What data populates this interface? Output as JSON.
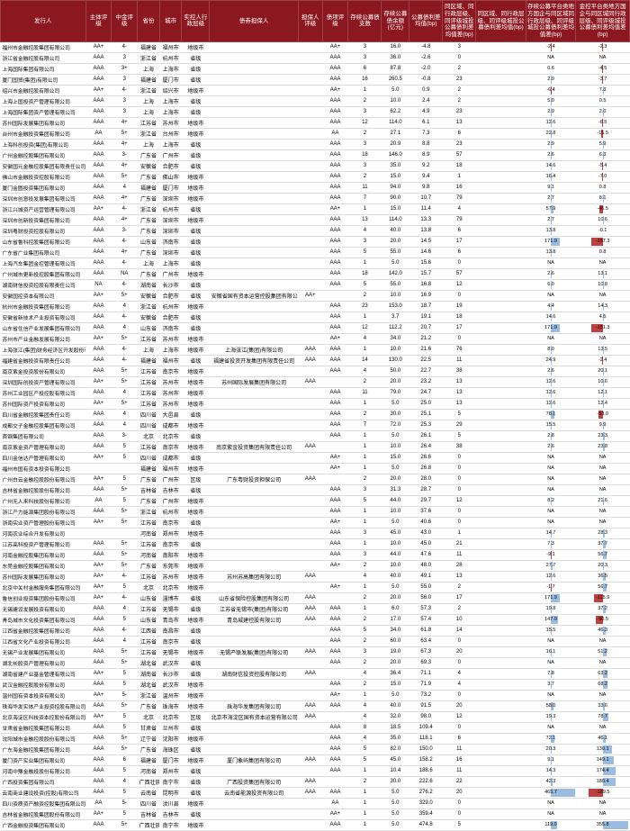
{
  "colors": {
    "header_bg": "#8b1820",
    "bar_pos": "#9bbce0",
    "bar_neg": "#c04040"
  },
  "widths": [
    92,
    28,
    28,
    24,
    24,
    30,
    96,
    26,
    28,
    36,
    30,
    36,
    36,
    54,
    54,
    58
  ],
  "headers": [
    "发行人",
    "主体评级",
    "中金评级",
    "省份",
    "城市",
    "实控人行政层级",
    "债券担保人",
    "担保人评级",
    "债项评级",
    "存续公募债支数",
    "存续公募债余额(亿元)",
    "公募债利差均值(bp)",
    "同区域、同行政层级、同评级城投公募债利差均值差(bp)",
    "同区域、同行政层级、同评级城投公募债利差均值(bp)",
    "存续公募平台类地方国企与同区域同行政层级、同评级城投公募债利差均值差(bp)",
    "金控平台类地方国企与同区城同行政层级、同评级城投公募债利差均值差(bp)"
  ],
  "bar_cols": [
    14,
    15
  ],
  "rows": [
    [
      "福州市金融控股集团有限公司",
      "AA+",
      "4-",
      "福建省",
      "福州市",
      "地级市",
      "",
      "",
      "AA+",
      "3",
      "16.0",
      "-4.8",
      "3",
      "",
      "-2.4",
      "-2.3"
    ],
    [
      "浙江省金融控股有限公司",
      "AAA",
      "3",
      "浙江省",
      "杭州市",
      "省级",
      "",
      "",
      "AAA",
      "3",
      "36.0",
      "-2.6",
      "0",
      "",
      "NA",
      "NA"
    ],
    [
      "上海国际集团有限公司",
      "AAA",
      "3+",
      "上海",
      "上海市",
      "省级",
      "",
      "",
      "AAA",
      "6",
      "87.8",
      "-2.0",
      "2",
      "",
      "0.6",
      "-4.5"
    ],
    [
      "厦门国贸(集团)有限公司",
      "AAA",
      "3",
      "福建省",
      "厦门市",
      "省级",
      "",
      "",
      "AAA",
      "16",
      "260.5",
      "-0.8",
      "23",
      "",
      "2.9",
      "-3.7"
    ],
    [
      "绍兴市金融控股有限公司",
      "AA+",
      "4-",
      "浙江省",
      "绍兴市",
      "地级市",
      "",
      "",
      "AA+",
      "1",
      "5.0",
      "0.9",
      "2",
      "",
      "-6.4",
      "7.3"
    ],
    [
      "上海上国投资产管理有限公司",
      "AAA",
      "3",
      "上海",
      "上海市",
      "省级",
      "",
      "",
      "AAA",
      "2",
      "10.0",
      "2.4",
      "2",
      "",
      "5.0",
      "0.5"
    ],
    [
      "上海国际集团资产管理有限公司",
      "AAA",
      "3",
      "上海",
      "上海市",
      "省级",
      "",
      "",
      "AAA",
      "3",
      "62.2",
      "4.9",
      "23",
      "",
      "2.9",
      "2.0"
    ],
    [
      "苏州国际发展集团有限公司",
      "AAA",
      "4+",
      "江苏省",
      "苏州市",
      "地级市",
      "",
      "",
      "AAA",
      "12",
      "114.0",
      "6.1",
      "13",
      "",
      "12.6",
      "-6.5"
    ],
    [
      "台州市金融投资集团有限公司",
      "AA",
      "5+",
      "浙江省",
      "台州市",
      "地级市",
      "",
      "",
      "AA",
      "2",
      "27.1",
      "7.3",
      "6",
      "",
      "22.8",
      "-15.5"
    ],
    [
      "上海科创投资(集团)有限公司",
      "AAA",
      "4+",
      "上海",
      "上海市",
      "省级",
      "",
      "",
      "AAA",
      "3",
      "20.9",
      "8.8",
      "23",
      "",
      "2.9",
      "5.9"
    ],
    [
      "广州金融控股集团有限公司",
      "AAA",
      "3-",
      "广东省",
      "广州市",
      "省级",
      "",
      "",
      "AAA",
      "18",
      "146.0",
      "8.9",
      "57",
      "",
      "2.6",
      "6.3"
    ],
    [
      "安徽国元金融控股集团有限责任公司",
      "AAA",
      "4+",
      "安徽省",
      "合肥市",
      "省级",
      "",
      "",
      "AAA",
      "3",
      "35.0",
      "9.2",
      "18",
      "",
      "14.6",
      "-5.4"
    ],
    [
      "佛山市金融投资控股有限公司",
      "AAA",
      "5+",
      "广东省",
      "佛山市",
      "地级市",
      "",
      "",
      "AAA",
      "2",
      "15.0",
      "9.4",
      "1",
      "",
      "16.4",
      "-7.0"
    ],
    [
      "厦门金圆投资集团有限公司",
      "AAA",
      "4",
      "福建省",
      "厦门市",
      "地级市",
      "",
      "",
      "AAA",
      "11",
      "94.0",
      "9.8",
      "16",
      "",
      "9.1",
      "0.8"
    ],
    [
      "深圳市创意投发展集团有限公司",
      "AAA",
      "4+",
      "广东省",
      "深圳市",
      "地级市",
      "",
      "",
      "AAA",
      "7",
      "90.0",
      "10.7",
      "79",
      "",
      "2.7",
      "8.1"
    ],
    [
      "浙江兴城资产运营管理有限公司",
      "AA+",
      "4-",
      "浙江省",
      "杭州市",
      "省级",
      "",
      "",
      "AA+",
      "1",
      "15.0",
      "11.4",
      "4",
      "",
      "57.9",
      "-46.5"
    ],
    [
      "深圳市创新投资集团有限公司",
      "AAA",
      "4+",
      "广东省",
      "深圳市",
      "地级市",
      "",
      "",
      "AAA",
      "13",
      "114.0",
      "13.3",
      "79",
      "",
      "2.7",
      "10.6"
    ],
    [
      "深圳粤财投资控股有限公司",
      "AAA",
      "3-",
      "广东省",
      "深圳市",
      "省级",
      "",
      "",
      "AAA",
      "4",
      "40.0",
      "13.8",
      "6",
      "",
      "13.8",
      "-0.1"
    ],
    [
      "山东省鲁科控股集团有限公司",
      "AAA",
      "4-",
      "山东省",
      "济南市",
      "省级",
      "",
      "",
      "AAA",
      "3",
      "20.0",
      "14.5",
      "17",
      "",
      "171.9",
      "-157.3"
    ],
    [
      "广东省广业集团有限公司",
      "AAA",
      "4+",
      "广东省",
      "深圳市",
      "省级",
      "",
      "",
      "AAA",
      "5",
      "55.0",
      "14.6",
      "6",
      "",
      "13.8",
      "0.8"
    ],
    [
      "上海汽车集团金控管理有限公司",
      "AAA",
      "4-",
      "上海",
      "上海市",
      "省级",
      "",
      "",
      "AAA",
      "1",
      "5.0",
      "15.6",
      "0",
      "",
      "NA",
      "NA"
    ],
    [
      "广州城市更新投控股集团有限公司",
      "AAA",
      "NA",
      "广东省",
      "广州市",
      "地级市",
      "",
      "",
      "AAA",
      "18",
      "142.0",
      "15.7",
      "57",
      "",
      "2.6",
      "13.1"
    ],
    [
      "湖南财信投资控股有限责任公司",
      "NA",
      "4-",
      "湖南省",
      "长沙市",
      "省级",
      "",
      "",
      "AAA",
      "5",
      "55.0",
      "16.8",
      "12",
      "",
      "6.0",
      "10.8"
    ],
    [
      "安徽国控资本有限公司",
      "AA+",
      "5+",
      "安徽省",
      "合肥市",
      "省级",
      "安徽省国有资本运营控股集团有限公司",
      "AA+",
      "",
      "2",
      "10.0",
      "16.9",
      "0",
      "",
      "NA",
      "NA"
    ],
    [
      "杭州市金融投资集团有限公司",
      "AAA",
      "4",
      "浙江省",
      "杭州市",
      "地级市",
      "",
      "",
      "AAA",
      "23",
      "153.0",
      "18.7",
      "19",
      "",
      "4.4",
      "14.3"
    ],
    [
      "安徽省新技术产业投资有限公司",
      "AAA",
      "4-",
      "安徽省",
      "合肥市",
      "省级",
      "",
      "",
      "AAA",
      "1",
      "3.7",
      "19.1",
      "18",
      "",
      "14.6",
      "4.5"
    ],
    [
      "山东省住信产业发展集团有限公司",
      "AAA",
      "4",
      "山东省",
      "济南市",
      "省级",
      "",
      "",
      "AAA",
      "12",
      "112.2",
      "20.7",
      "17",
      "",
      "171.9",
      "-151.3"
    ],
    [
      "苏州市产业金融发展有限公司",
      "AA+",
      "5+",
      "江苏省",
      "苏州市",
      "地级市",
      "",
      "",
      "AA+",
      "4",
      "34.0",
      "21.2",
      "0",
      "",
      "NA",
      "NA"
    ],
    [
      "上海张江(集团)财务经济区开发股份有限公司",
      "AAA",
      "4-",
      "上海",
      "上海市",
      "地级市",
      "上海张江(集团)有限公司",
      "AAA",
      "AAA",
      "1",
      "10.0",
      "21.6",
      "76",
      "",
      "8.0",
      "13.5"
    ],
    [
      "福建省金融投资有限责任公司",
      "AAA",
      "4-",
      "福建省",
      "福州市",
      "省级",
      "福建省投资开发集团有限责任公司",
      "AAA",
      "AAA",
      "14",
      "130.0",
      "22.5",
      "11",
      "",
      "24.9",
      "-2.4"
    ],
    [
      "南京紫金投资股份有限公司",
      "AAA",
      "5+",
      "江苏省",
      "南京市",
      "地级市",
      "",
      "",
      "AAA",
      "4",
      "50.0",
      "22.7",
      "38",
      "",
      "2.6",
      "20.1"
    ],
    [
      "深圳国际创投资产管理有限公司",
      "AA+",
      "5+",
      "江苏省",
      "苏州市",
      "地级市",
      "苏州国际发展集团有限公司",
      "AAA",
      "",
      "2",
      "20.0",
      "23.2",
      "13",
      "",
      "12.6",
      "10.6"
    ],
    [
      "苏州工业园区产投控股有限公司",
      "AAA",
      "4",
      "江苏省",
      "苏州市",
      "地级市",
      "",
      "",
      "AAA",
      "11",
      "79.0",
      "24.7",
      "13",
      "",
      "12.6",
      "12.1"
    ],
    [
      "苏州国际资产投资有限公司",
      "AA+",
      "5+",
      "江苏省",
      "苏州市",
      "地级市",
      "",
      "",
      "AAA",
      "1",
      "5.0",
      "25.0",
      "13",
      "",
      "12.6",
      "12.4"
    ],
    [
      "四川省金融控股集团责任公司",
      "AAA",
      "4",
      "四川省",
      "大邑县",
      "省级",
      "",
      "",
      "AAA",
      "2",
      "30.0",
      "25.1",
      "5",
      "",
      "78.1",
      "-53.0"
    ],
    [
      "成都交子金融控股集团有限公司",
      "AAA",
      "4",
      "四川省",
      "成都市",
      "地级市",
      "",
      "",
      "AAA",
      "7",
      "72.0",
      "25.3",
      "29",
      "",
      "15.5",
      "9.9"
    ],
    [
      "首钢集团有限公司",
      "AAA",
      "3-",
      "北京",
      "北京市",
      "省级",
      "",
      "",
      "AAA",
      "1",
      "5.0",
      "26.1",
      "5",
      "",
      "2.8",
      "23.3"
    ],
    [
      "南京紫金资产管理有限公司",
      "AAA",
      "5",
      "江苏省",
      "南京市",
      "地级市",
      "南京紫金投资集团有限责任公司",
      "AAA",
      "",
      "1",
      "10.0",
      "26.4",
      "38",
      "",
      "2.6",
      "23.8"
    ],
    [
      "四川金信达产管理有限公司",
      "AA+",
      "5",
      "四川省",
      "成都市",
      "省级",
      "",
      "",
      "AA+",
      "1",
      "15.0",
      "26.6",
      "0",
      "",
      "NA",
      "NA"
    ],
    [
      "福州市国有资本投资有限公司",
      "",
      "",
      "福建省",
      "福州市",
      "地级市",
      "",
      "",
      "AA+",
      "1",
      "5.0",
      "26.8",
      "0",
      "",
      "NA",
      "NA"
    ],
    [
      "广州白云金融控股股份有限公司",
      "AA+",
      "5",
      "广东省",
      "广州市",
      "区级",
      "广东粤财投资担保公司",
      "AAA",
      "",
      "2",
      "20.0",
      "28.0",
      "0",
      "",
      "NA",
      "NA"
    ],
    [
      "吉林省金融控股股份有限公司",
      "AAA",
      "5+",
      "吉林省",
      "吉林市",
      "省级",
      "",
      "",
      "AAA",
      "3",
      "31.3",
      "28.7",
      "0",
      "",
      "NA",
      "NA"
    ],
    [
      "广州无人来科技股份有限公司",
      "AA",
      "5",
      "广东省",
      "广州市",
      "地级市",
      "",
      "",
      "AAA",
      "5",
      "44.0",
      "29.7",
      "12",
      "",
      "8.2",
      "21.6"
    ],
    [
      "浙江产力能源集团股份有限公司",
      "AAA",
      "5+",
      "浙江省",
      "杭州市",
      "地级市",
      "",
      "",
      "AAA",
      "1",
      "10.0",
      "37.6",
      "0",
      "",
      "NA",
      "NA"
    ],
    [
      "浙南实业资产管理股份有限公司",
      "AA+",
      "5+",
      "江苏省",
      "南京市",
      "省级",
      "",
      "",
      "AA+",
      "1",
      "5.0",
      "40.6",
      "0",
      "",
      "NA",
      "NA"
    ],
    [
      "河南农业综合开发有限公司",
      "",
      "",
      "河南省",
      "郑州市",
      "地级市",
      "",
      "",
      "AAA",
      "3",
      "45.0",
      "43.0",
      "1",
      "",
      "14.7",
      "28.3"
    ],
    [
      "江苏高科投资产管理有限公司",
      "AAA",
      "5+",
      "江苏省",
      "南京市",
      "省级",
      "",
      "",
      "AAA",
      "1",
      "10.0",
      "45.0",
      "21",
      "",
      "7.3",
      "37.7"
    ],
    [
      "河南金融控股集团有限公司",
      "AAA",
      "5+",
      "河南省",
      "南阳市",
      "地级市",
      "",
      "",
      "AAA",
      "3",
      "44.0",
      "47.6",
      "11",
      "",
      "-9.1",
      "56.7"
    ],
    [
      "东莞金融控股集团有限公司",
      "AA+",
      "5+",
      "广东省",
      "东莞市",
      "地级市",
      "",
      "",
      "AA+",
      "2",
      "10.0",
      "48.0",
      "28",
      "",
      "27.7",
      "20.3"
    ],
    [
      "苏州国际发展集团有限公司",
      "AA+",
      "4-",
      "江苏省",
      "苏州市",
      "地级市",
      "苏州苏高集团有限公司",
      "AAA",
      "",
      "4",
      "40.0",
      "49.1",
      "13",
      "",
      "12.6",
      "36.5"
    ],
    [
      "北京中关村金融服务集团有限公司",
      "AA+",
      "5",
      "北京",
      "北京市",
      "地级市",
      "",
      "",
      "AA+",
      "1",
      "5.0",
      "55.0",
      "2",
      "",
      "-1.7",
      "56.7"
    ],
    [
      "鲁信创业投资集团股份有限公司",
      "AA+",
      "4-",
      "山东省",
      "淄博市",
      "省级",
      "山东省保险控股集团有限公司",
      "AAA",
      "",
      "2",
      "20.0",
      "56.0",
      "17",
      "",
      "171.9",
      "-115.9"
    ],
    [
      "无锡建设发展投资有限公司",
      "AAA",
      "4",
      "江苏省",
      "无锡市",
      "省级",
      "江苏省无锡市(集团)有限公司",
      "AAA",
      "AAA",
      "1",
      "6.0",
      "57.3",
      "2",
      "",
      "19.8",
      "37.2"
    ],
    [
      "青岛城市文化投资集团有限公司",
      "AAA",
      "5",
      "山东省",
      "青岛市",
      "地级市",
      "青岛城建控股有限公司",
      "AAA",
      "AAA",
      "2",
      "17.0",
      "57.4",
      "10",
      "",
      "147.9",
      "-90.5"
    ],
    [
      "江西省金融控股集团有限公司",
      "AAA",
      "4-",
      "江西省",
      "南昌市",
      "省级",
      "",
      "",
      "AAA",
      "5",
      "34.0",
      "61.8",
      "14",
      "",
      "15.5",
      "46.3"
    ],
    [
      "江西省文化产业投资有限公司",
      "AAA",
      "4",
      "江苏省",
      "南京市",
      "省级",
      "",
      "",
      "AAA",
      "2",
      "60.0",
      "63.4",
      "0",
      "",
      "NA",
      "NA"
    ],
    [
      "无锡产业发展集团有限公司",
      "AAA",
      "5+",
      "江苏省",
      "无锡市",
      "地级市",
      "无锡产联发展(集团)有限公司",
      "AAA",
      "AAA",
      "3",
      "19.0",
      "67.3",
      "20",
      "",
      "16.1",
      "51.2"
    ],
    [
      "湖北长股资产管理有限公司",
      "AAA",
      "5+",
      "湖北省",
      "武汉市",
      "省级",
      "",
      "",
      "AAA",
      "2",
      "20.0",
      "69.3",
      "0",
      "",
      "NA",
      "NA"
    ],
    [
      "湖南省建产业基金管理有限公司",
      "AA+",
      "5",
      "湖南省",
      "长沙市",
      "省级",
      "湖南财信投资控股有限公司",
      "AAA",
      "",
      "4",
      "36.4",
      "71.1",
      "4",
      "",
      "7.8",
      "63.2"
    ],
    [
      "武汉金融控股股份有限公司",
      "AAA",
      "5",
      "湖北省",
      "武汉市",
      "地级市",
      "",
      "",
      "AAA",
      "2",
      "15.0",
      "71.9",
      "4",
      "",
      "3.7",
      "68.2"
    ],
    [
      "温州国有资本投资有限公司",
      "AA+",
      "5-",
      "浙江省",
      "温州市",
      "地级市",
      "",
      "",
      "AA+",
      "1",
      "5.0",
      "73.2",
      "0",
      "",
      "NA",
      "NA"
    ],
    [
      "珠海华发实体产业投资控股有限公司",
      "AAA",
      "5+",
      "广东省",
      "珠海市",
      "地级市",
      "珠海华发集团有限公司",
      "AAA",
      "AAA",
      "4",
      "40.0",
      "91.5",
      "20",
      "",
      "58.0",
      "33.6"
    ],
    [
      "北京海淀区科技资本控股份有限公司",
      "AA+",
      "5",
      "北京",
      "北京市",
      "区级",
      "北京市海淀区国有资本运营有限公司",
      "AAA",
      "",
      "4",
      "32.0",
      "98.0",
      "12",
      "",
      "19.3",
      "78.7"
    ],
    [
      "甘肃省金融控股集团有限公司",
      "AAA",
      "5",
      "甘肃省",
      "兰州市",
      "省级",
      "",
      "",
      "AAA",
      "8",
      "18.5",
      "109.4",
      "0",
      "",
      "NA",
      "NA"
    ],
    [
      "沈阳城市金融控股股份有限公司",
      "AAA",
      "5+",
      "辽宁省",
      "沈阳市",
      "地级市",
      "",
      "",
      "AAA",
      "4",
      "35.0",
      "118.1",
      "6",
      "",
      "72.1",
      "46.1"
    ],
    [
      "广东海金融控股集团有限公司",
      "AAA",
      "5+",
      "广东省",
      "海珠区",
      "省级",
      "",
      "",
      "AAA",
      "5",
      "82.0",
      "150.0",
      "11",
      "",
      "20.3",
      "130.1"
    ],
    [
      "厦门资产实业集团有限公司",
      "AAA",
      "6",
      "福建省",
      "厦门市",
      "地级市",
      "厦门象屿集团有限公司",
      "AAA",
      "AAA",
      "5",
      "45.0",
      "158.2",
      "16",
      "",
      "9.1",
      "149.1"
    ],
    [
      "河南中豫金融投股份有限公司",
      "AAA",
      "5",
      "河南省",
      "郑州市",
      "省级",
      "",
      "",
      "AAA",
      "1",
      "10.4",
      "188.6",
      "11",
      "",
      "14.3",
      "174.4"
    ],
    [
      "广西投资集团有限公司",
      "AAA",
      "4",
      "广西壮族自治区",
      "南宁市",
      "省级",
      "广西投资集团有限公司",
      "AAA",
      "",
      "2",
      "30.0",
      "222.6",
      "22",
      "",
      "42.3",
      "180.4"
    ],
    [
      "云南商业建设投资(控股)有限公司",
      "AAA",
      "5",
      "云南省",
      "昆明市",
      "省级",
      "云南省能源投资有限公司",
      "AAA",
      "AAA",
      "1",
      "5.0",
      "276.2",
      "20",
      "",
      "465.7",
      "-189.5"
    ],
    [
      "四川资质资产融资控股集团有限公司",
      "AA",
      "5-",
      "四川省",
      "汶川县",
      "地级市",
      "",
      "",
      "AA",
      "1",
      "5.0",
      "329.0",
      "0",
      "",
      "NA",
      "NA"
    ],
    [
      "吉林省金融控股集团股份有限公司",
      "AA+",
      "5",
      "吉林省",
      "吉林市",
      "省级",
      "",
      "",
      "AA+",
      "1",
      "5.0",
      "359.4",
      "0",
      "",
      "NA",
      "NA"
    ],
    [
      "广西金融投资集团有限公司",
      "AAA",
      "5+",
      "广西壮族自治区",
      "南宁市",
      "地级市",
      "",
      "",
      "AAA",
      "1",
      "5.0",
      "474.8",
      "5",
      "",
      "119.0",
      "355.8"
    ]
  ]
}
